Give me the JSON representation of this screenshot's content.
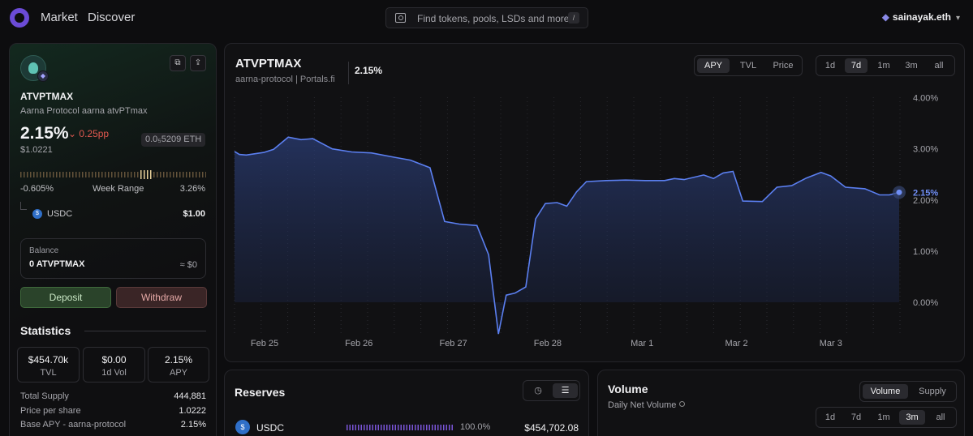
{
  "header": {
    "nav": [
      "Market",
      "Discover"
    ],
    "search_placeholder": "Find tokens, pools, LSDs and more",
    "search_shortcut": "/",
    "account": "sainayak.eth"
  },
  "token": {
    "symbol": "ATVPTMAX",
    "full_name": "Aarna Protocol aarna atvPTmax",
    "apy": "2.15%",
    "apy_change": "0.25pp",
    "eth_value": "0.0₅5209 ETH",
    "price": "$1.0221",
    "range_min": "-0.605%",
    "range_label": "Week Range",
    "range_max": "3.26%",
    "range_position": 0.74,
    "underlying": {
      "symbol": "USDC",
      "value": "$1.00"
    }
  },
  "balance": {
    "label": "Balance",
    "amount": "0 ATVPTMAX",
    "usd": "≈ $0"
  },
  "actions": {
    "deposit": "Deposit",
    "withdraw": "Withdraw"
  },
  "statistics": {
    "title": "Statistics",
    "boxes": [
      {
        "value": "$454.70k",
        "label": "TVL"
      },
      {
        "value": "$0.00",
        "label": "1d Vol"
      },
      {
        "value": "2.15%",
        "label": "APY"
      }
    ],
    "rows": [
      {
        "key": "Total Supply",
        "value": "444,881"
      },
      {
        "key": "Price per share",
        "value": "1.0222"
      },
      {
        "key": "Base APY - aarna-protocol",
        "value": "2.15%"
      }
    ]
  },
  "chart_panel": {
    "title": "ATVPTMAX",
    "subtitle": "aarna-protocol | Portals.fi",
    "current_value": "2.15%",
    "metric_tabs": [
      "APY",
      "TVL",
      "Price"
    ],
    "metric_selected": "APY",
    "range_tabs": [
      "1d",
      "7d",
      "1m",
      "3m",
      "all"
    ],
    "range_selected": "7d",
    "end_label": "2.15%"
  },
  "chart_data": {
    "type": "area",
    "x_ticks": [
      "Feb 25",
      "Feb 26",
      "Feb 27",
      "Feb 28",
      "Mar 1",
      "Mar 2",
      "Mar 3"
    ],
    "y_ticks": [
      "0.00%",
      "1.00%",
      "2.00%",
      "3.00%",
      "4.00%"
    ],
    "ylim": [
      -0.65,
      4.0
    ],
    "grid": "vertical-dotted",
    "series": [
      {
        "values": [
          [
            0.0,
            2.95
          ],
          [
            0.05,
            2.89
          ],
          [
            0.12,
            2.88
          ],
          [
            0.3,
            2.93
          ],
          [
            0.4,
            2.99
          ],
          [
            0.55,
            3.23
          ],
          [
            0.68,
            3.18
          ],
          [
            0.8,
            3.2
          ],
          [
            1.0,
            3.0
          ],
          [
            1.2,
            2.94
          ],
          [
            1.4,
            2.92
          ],
          [
            1.65,
            2.83
          ],
          [
            1.8,
            2.78
          ],
          [
            2.0,
            2.63
          ],
          [
            2.15,
            1.58
          ],
          [
            2.3,
            1.53
          ],
          [
            2.48,
            1.5
          ],
          [
            2.6,
            0.93
          ],
          [
            2.7,
            -0.62
          ],
          [
            2.78,
            0.14
          ],
          [
            2.87,
            0.18
          ],
          [
            2.98,
            0.3
          ],
          [
            3.08,
            1.63
          ],
          [
            3.18,
            1.93
          ],
          [
            3.3,
            1.95
          ],
          [
            3.4,
            1.88
          ],
          [
            3.5,
            2.16
          ],
          [
            3.6,
            2.36
          ],
          [
            3.8,
            2.38
          ],
          [
            4.0,
            2.39
          ],
          [
            4.2,
            2.38
          ],
          [
            4.4,
            2.38
          ],
          [
            4.5,
            2.42
          ],
          [
            4.6,
            2.4
          ],
          [
            4.8,
            2.49
          ],
          [
            4.9,
            2.42
          ],
          [
            5.0,
            2.53
          ],
          [
            5.1,
            2.56
          ],
          [
            5.2,
            1.98
          ],
          [
            5.4,
            1.97
          ],
          [
            5.55,
            2.25
          ],
          [
            5.7,
            2.28
          ],
          [
            5.85,
            2.43
          ],
          [
            6.0,
            2.54
          ],
          [
            6.1,
            2.47
          ],
          [
            6.25,
            2.25
          ],
          [
            6.45,
            2.22
          ],
          [
            6.6,
            2.1
          ],
          [
            6.7,
            2.1
          ],
          [
            6.8,
            2.15
          ]
        ]
      }
    ]
  },
  "reserves": {
    "title": "Reserves",
    "rows": [
      {
        "symbol": "USDC",
        "percent": "100.0%",
        "share": 1.0,
        "value": "$454,702.08"
      }
    ]
  },
  "volume": {
    "title": "Volume",
    "subtitle": "Daily Net Volume",
    "tabs": [
      "Volume",
      "Supply"
    ],
    "tab_selected": "Volume",
    "range_tabs": [
      "1d",
      "7d",
      "1m",
      "3m",
      "all"
    ],
    "range_selected": "3m"
  }
}
